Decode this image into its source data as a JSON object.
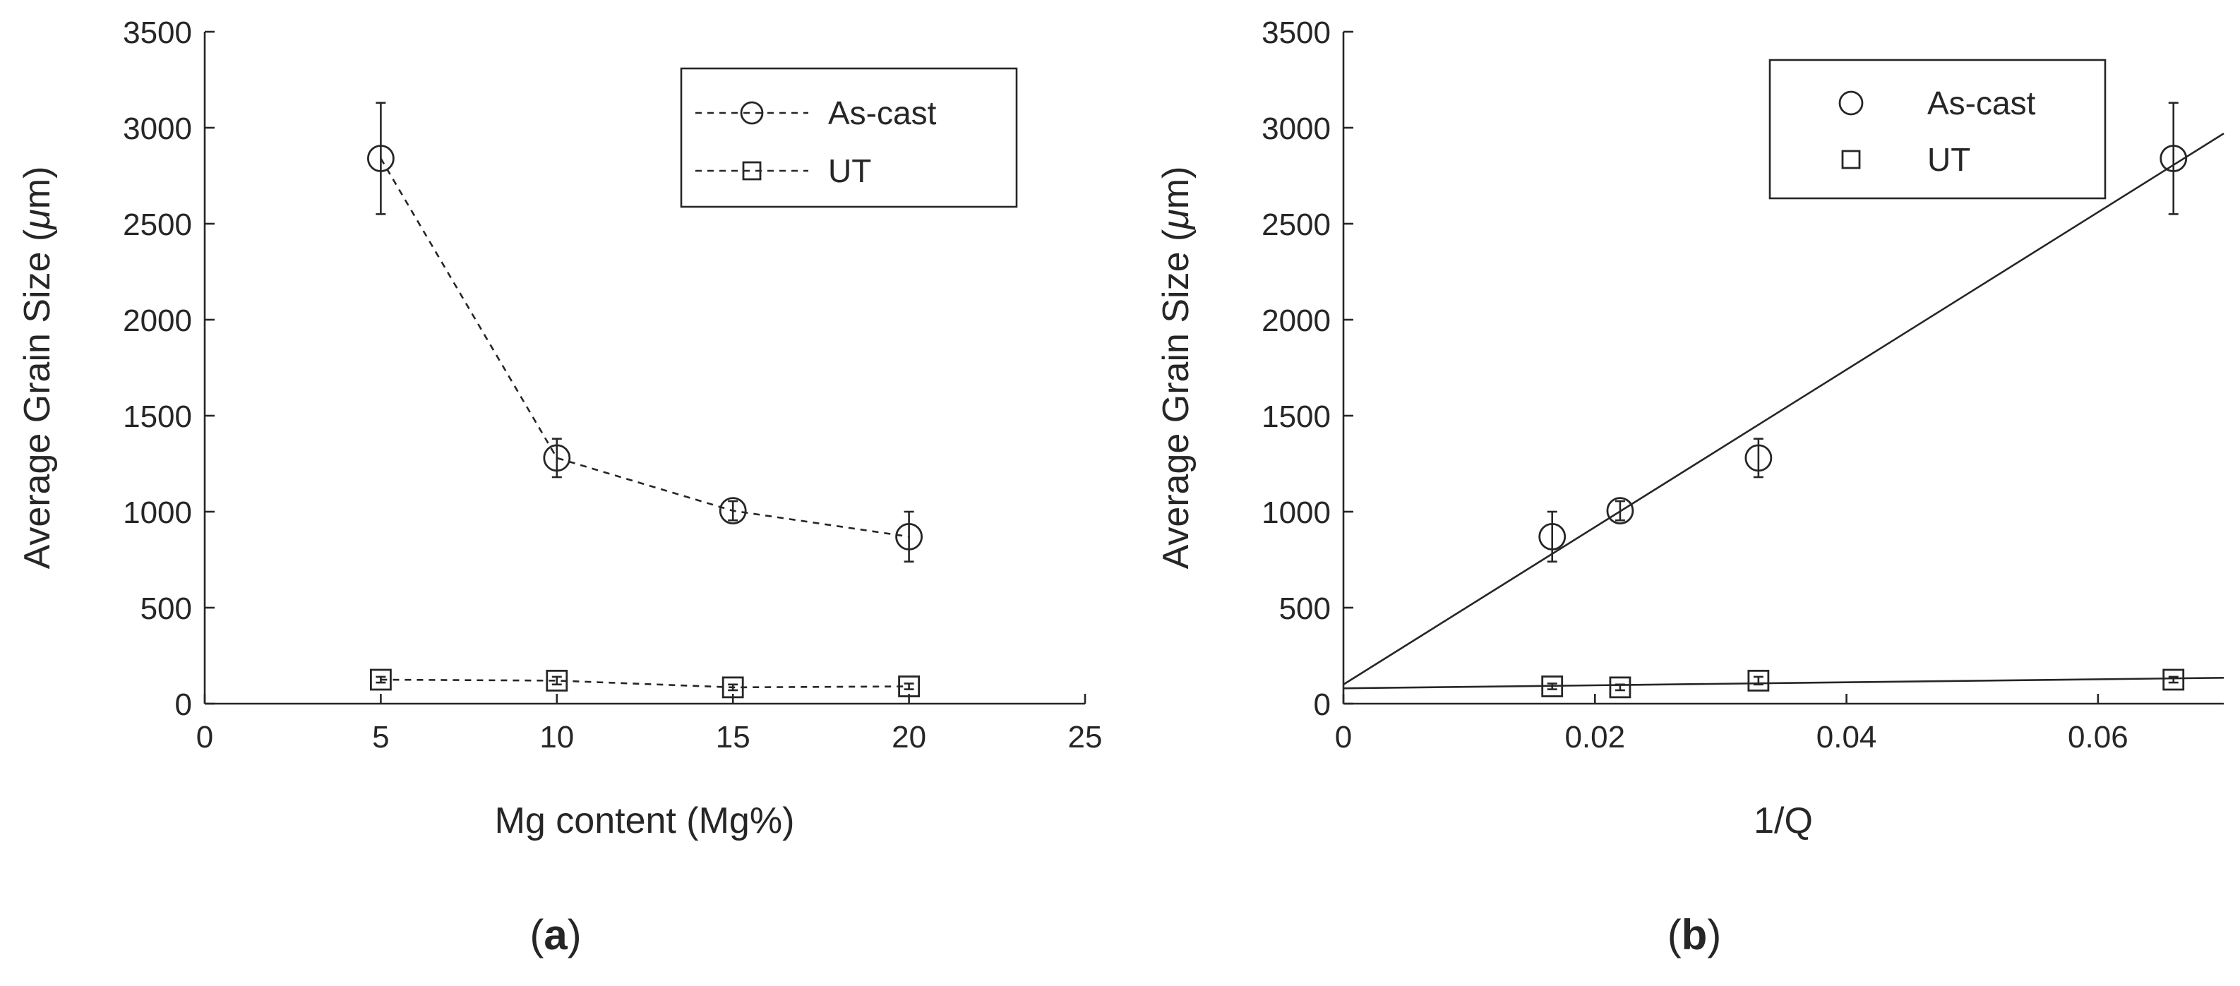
{
  "chart_data": [
    {
      "type": "line",
      "panel_label": "a",
      "xlabel": "Mg content (Mg%)",
      "ylabel": "Average Grain Size (",
      "ylabel_unit": "μ",
      "ylabel_unit_suffix": "m)",
      "xlim": [
        0,
        25
      ],
      "ylim": [
        0,
        3500
      ],
      "xticks": [
        0,
        5,
        10,
        15,
        20,
        25
      ],
      "yticks": [
        0,
        500,
        1000,
        1500,
        2000,
        2500,
        3000,
        3500
      ],
      "legend_position": "top-right",
      "series": [
        {
          "name": "As-cast",
          "marker": "circle",
          "line": "dashed",
          "x": [
            5,
            10,
            15,
            20
          ],
          "y": [
            2840,
            1280,
            1005,
            870
          ],
          "err": [
            290,
            100,
            50,
            130
          ]
        },
        {
          "name": "UT",
          "marker": "square",
          "line": "dashed",
          "x": [
            5,
            10,
            15,
            20
          ],
          "y": [
            125,
            120,
            85,
            90
          ],
          "err": [
            15,
            20,
            15,
            15
          ]
        }
      ]
    },
    {
      "type": "scatter",
      "panel_label": "b",
      "xlabel": "1/Q",
      "ylabel": "Average Grain Size (",
      "ylabel_unit": "μ",
      "ylabel_unit_suffix": "m)",
      "xlim": [
        0,
        0.07
      ],
      "ylim": [
        0,
        3500
      ],
      "xticks": [
        0,
        0.02,
        0.04,
        0.06
      ],
      "xtick_labels": [
        "0",
        "0.02",
        "0.04",
        "0.06"
      ],
      "yticks": [
        0,
        500,
        1000,
        1500,
        2000,
        2500,
        3000,
        3500
      ],
      "legend_position": "top-right",
      "series": [
        {
          "name": "As-cast",
          "marker": "circle",
          "x": [
            0.0166,
            0.022,
            0.033,
            0.066
          ],
          "y": [
            870,
            1005,
            1280,
            2840
          ],
          "err": [
            130,
            50,
            100,
            290
          ],
          "fit": {
            "x": [
              0,
              0.07
            ],
            "y": [
              100,
              2970
            ]
          }
        },
        {
          "name": "UT",
          "marker": "square",
          "x": [
            0.0166,
            0.022,
            0.033,
            0.066
          ],
          "y": [
            90,
            85,
            120,
            125
          ],
          "err": [
            15,
            15,
            20,
            15
          ],
          "fit": {
            "x": [
              0,
              0.07
            ],
            "y": [
              80,
              135
            ]
          }
        }
      ]
    }
  ]
}
